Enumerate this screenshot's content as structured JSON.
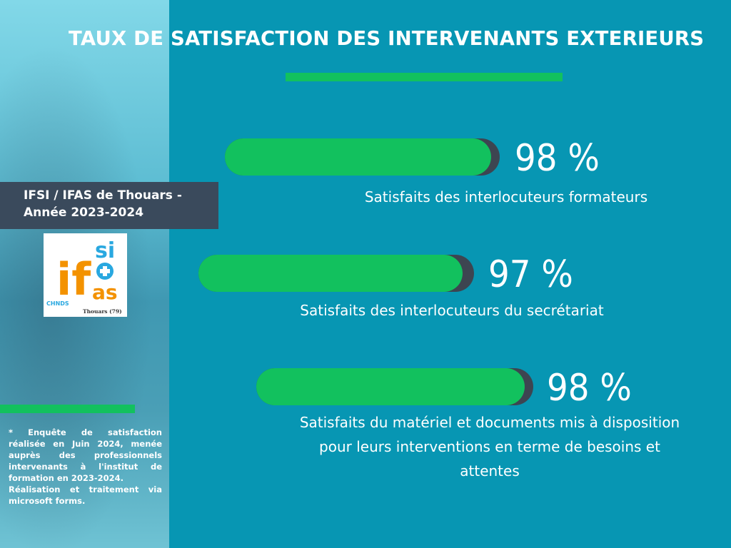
{
  "title": "TAUX DE SATISFACTION DES INTERVENANTS EXTERIEURS",
  "institute": {
    "line1": "IFSI / IFAS  de Thouars -",
    "line2": "Année 2023-2024"
  },
  "logo": {
    "letters_top": "si",
    "letters_mid": "if",
    "letters_bottom": "as",
    "tag": "CHNDS",
    "place": "Thouars (79)"
  },
  "footnote": {
    "p1": "* Enquête de satisfaction réalisée en Juin 2024, menée auprès des professionnels intervenants à l'institut de formation en 2023-2024.",
    "p2": "Réalisation et traitement via microsoft forms."
  },
  "stats": [
    {
      "percent_text": "98 %",
      "value": 98,
      "label": "Satisfaits des interlocuteurs formateurs"
    },
    {
      "percent_text": "97 %",
      "value": 97,
      "label": "Satisfaits des interlocuteurs du secrétariat"
    },
    {
      "percent_text": "98 %",
      "value": 98,
      "label": "Satisfaits du matériel et documents mis à disposition pour leurs interventions en terme de besoins et attentes"
    }
  ],
  "colors": {
    "background": "#0796b3",
    "accent_green": "#12c15e",
    "bar_shadow": "#3d4551",
    "institute_box": "#3a4a5c",
    "logo_orange": "#f39200",
    "logo_blue": "#29a8e0"
  }
}
